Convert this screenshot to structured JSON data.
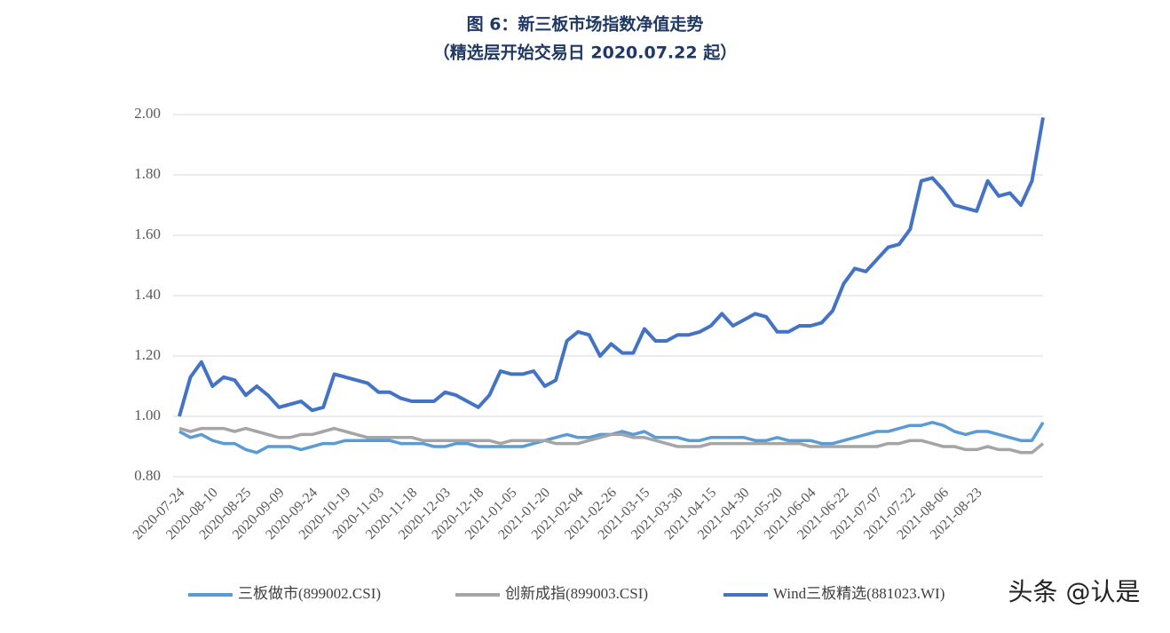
{
  "chart_data": {
    "type": "line",
    "title": "图 6：新三板市场指数净值走势",
    "subtitle": "（精选层开始交易日 2020.07.22 起）",
    "watermark": "头条 @认是",
    "categories": [
      "2020-07-24",
      null,
      null,
      "2020-08-10",
      null,
      null,
      "2020-08-25",
      null,
      null,
      "2020-09-09",
      null,
      null,
      "2020-09-24",
      null,
      null,
      "2020-10-19",
      null,
      null,
      "2020-11-03",
      null,
      null,
      "2020-11-18",
      null,
      null,
      "2020-12-03",
      null,
      null,
      "2020-12-18",
      null,
      null,
      "2021-01-05",
      null,
      null,
      "2021-01-20",
      null,
      null,
      "2021-02-04",
      null,
      null,
      "2021-02-26",
      null,
      null,
      "2021-03-15",
      null,
      null,
      "2021-03-30",
      null,
      null,
      "2021-04-15",
      null,
      null,
      "2021-04-30",
      null,
      null,
      "2021-05-20",
      null,
      null,
      "2021-06-04",
      null,
      null,
      "2021-06-22",
      null,
      null,
      "2021-07-07",
      null,
      null,
      "2021-07-22",
      null,
      null,
      "2021-08-06",
      null,
      null,
      "2021-08-23",
      null,
      null,
      null,
      null,
      null,
      null
    ],
    "series": [
      {
        "name": "三板做市(899002.CSI)",
        "color": "#5b9bd5",
        "values": [
          0.95,
          0.93,
          0.94,
          0.92,
          0.91,
          0.91,
          0.89,
          0.88,
          0.9,
          0.9,
          0.9,
          0.89,
          0.9,
          0.91,
          0.91,
          0.92,
          0.92,
          0.92,
          0.92,
          0.92,
          0.91,
          0.91,
          0.91,
          0.9,
          0.9,
          0.91,
          0.91,
          0.9,
          0.9,
          0.9,
          0.9,
          0.9,
          0.91,
          0.92,
          0.93,
          0.94,
          0.93,
          0.93,
          0.94,
          0.94,
          0.95,
          0.94,
          0.95,
          0.93,
          0.93,
          0.93,
          0.92,
          0.92,
          0.93,
          0.93,
          0.93,
          0.93,
          0.92,
          0.92,
          0.93,
          0.92,
          0.92,
          0.92,
          0.91,
          0.91,
          0.92,
          0.93,
          0.94,
          0.95,
          0.95,
          0.96,
          0.97,
          0.97,
          0.98,
          0.97,
          0.95,
          0.94,
          0.95,
          0.95,
          0.94,
          0.93,
          0.92,
          0.92,
          0.98
        ]
      },
      {
        "name": "创新成指(899003.CSI)",
        "color": "#a5a5a5",
        "values": [
          0.96,
          0.95,
          0.96,
          0.96,
          0.96,
          0.95,
          0.96,
          0.95,
          0.94,
          0.93,
          0.93,
          0.94,
          0.94,
          0.95,
          0.96,
          0.95,
          0.94,
          0.93,
          0.93,
          0.93,
          0.93,
          0.93,
          0.92,
          0.92,
          0.92,
          0.92,
          0.92,
          0.92,
          0.92,
          0.91,
          0.92,
          0.92,
          0.92,
          0.92,
          0.91,
          0.91,
          0.91,
          0.92,
          0.93,
          0.94,
          0.94,
          0.93,
          0.93,
          0.92,
          0.91,
          0.9,
          0.9,
          0.9,
          0.91,
          0.91,
          0.91,
          0.91,
          0.91,
          0.91,
          0.91,
          0.91,
          0.91,
          0.9,
          0.9,
          0.9,
          0.9,
          0.9,
          0.9,
          0.9,
          0.91,
          0.91,
          0.92,
          0.92,
          0.91,
          0.9,
          0.9,
          0.89,
          0.89,
          0.9,
          0.89,
          0.89,
          0.88,
          0.88,
          0.91
        ]
      },
      {
        "name": "Wind三板精选(881023.WI)",
        "color": "#4472c4",
        "values": [
          1.0,
          1.13,
          1.18,
          1.1,
          1.13,
          1.12,
          1.07,
          1.1,
          1.07,
          1.03,
          1.04,
          1.05,
          1.02,
          1.03,
          1.14,
          1.13,
          1.12,
          1.11,
          1.08,
          1.08,
          1.06,
          1.05,
          1.05,
          1.05,
          1.08,
          1.07,
          1.05,
          1.03,
          1.07,
          1.15,
          1.14,
          1.14,
          1.15,
          1.1,
          1.12,
          1.25,
          1.28,
          1.27,
          1.2,
          1.24,
          1.21,
          1.21,
          1.29,
          1.25,
          1.25,
          1.27,
          1.27,
          1.28,
          1.3,
          1.34,
          1.3,
          1.32,
          1.34,
          1.33,
          1.28,
          1.28,
          1.3,
          1.3,
          1.31,
          1.35,
          1.44,
          1.49,
          1.48,
          1.52,
          1.56,
          1.57,
          1.62,
          1.78,
          1.79,
          1.75,
          1.7,
          1.69,
          1.68,
          1.78,
          1.73,
          1.74,
          1.7,
          1.78,
          1.99
        ]
      }
    ],
    "ylim": [
      0.8,
      2.0
    ],
    "yticks": [
      {
        "value": 0.8,
        "label": "0.80"
      },
      {
        "value": 1.0,
        "label": "1.00"
      },
      {
        "value": 1.2,
        "label": "1.20"
      },
      {
        "value": 1.4,
        "label": "1.40"
      },
      {
        "value": 1.6,
        "label": "1.60"
      },
      {
        "value": 1.8,
        "label": "1.80"
      },
      {
        "value": 2.0,
        "label": "2.00"
      }
    ],
    "grid": true
  }
}
